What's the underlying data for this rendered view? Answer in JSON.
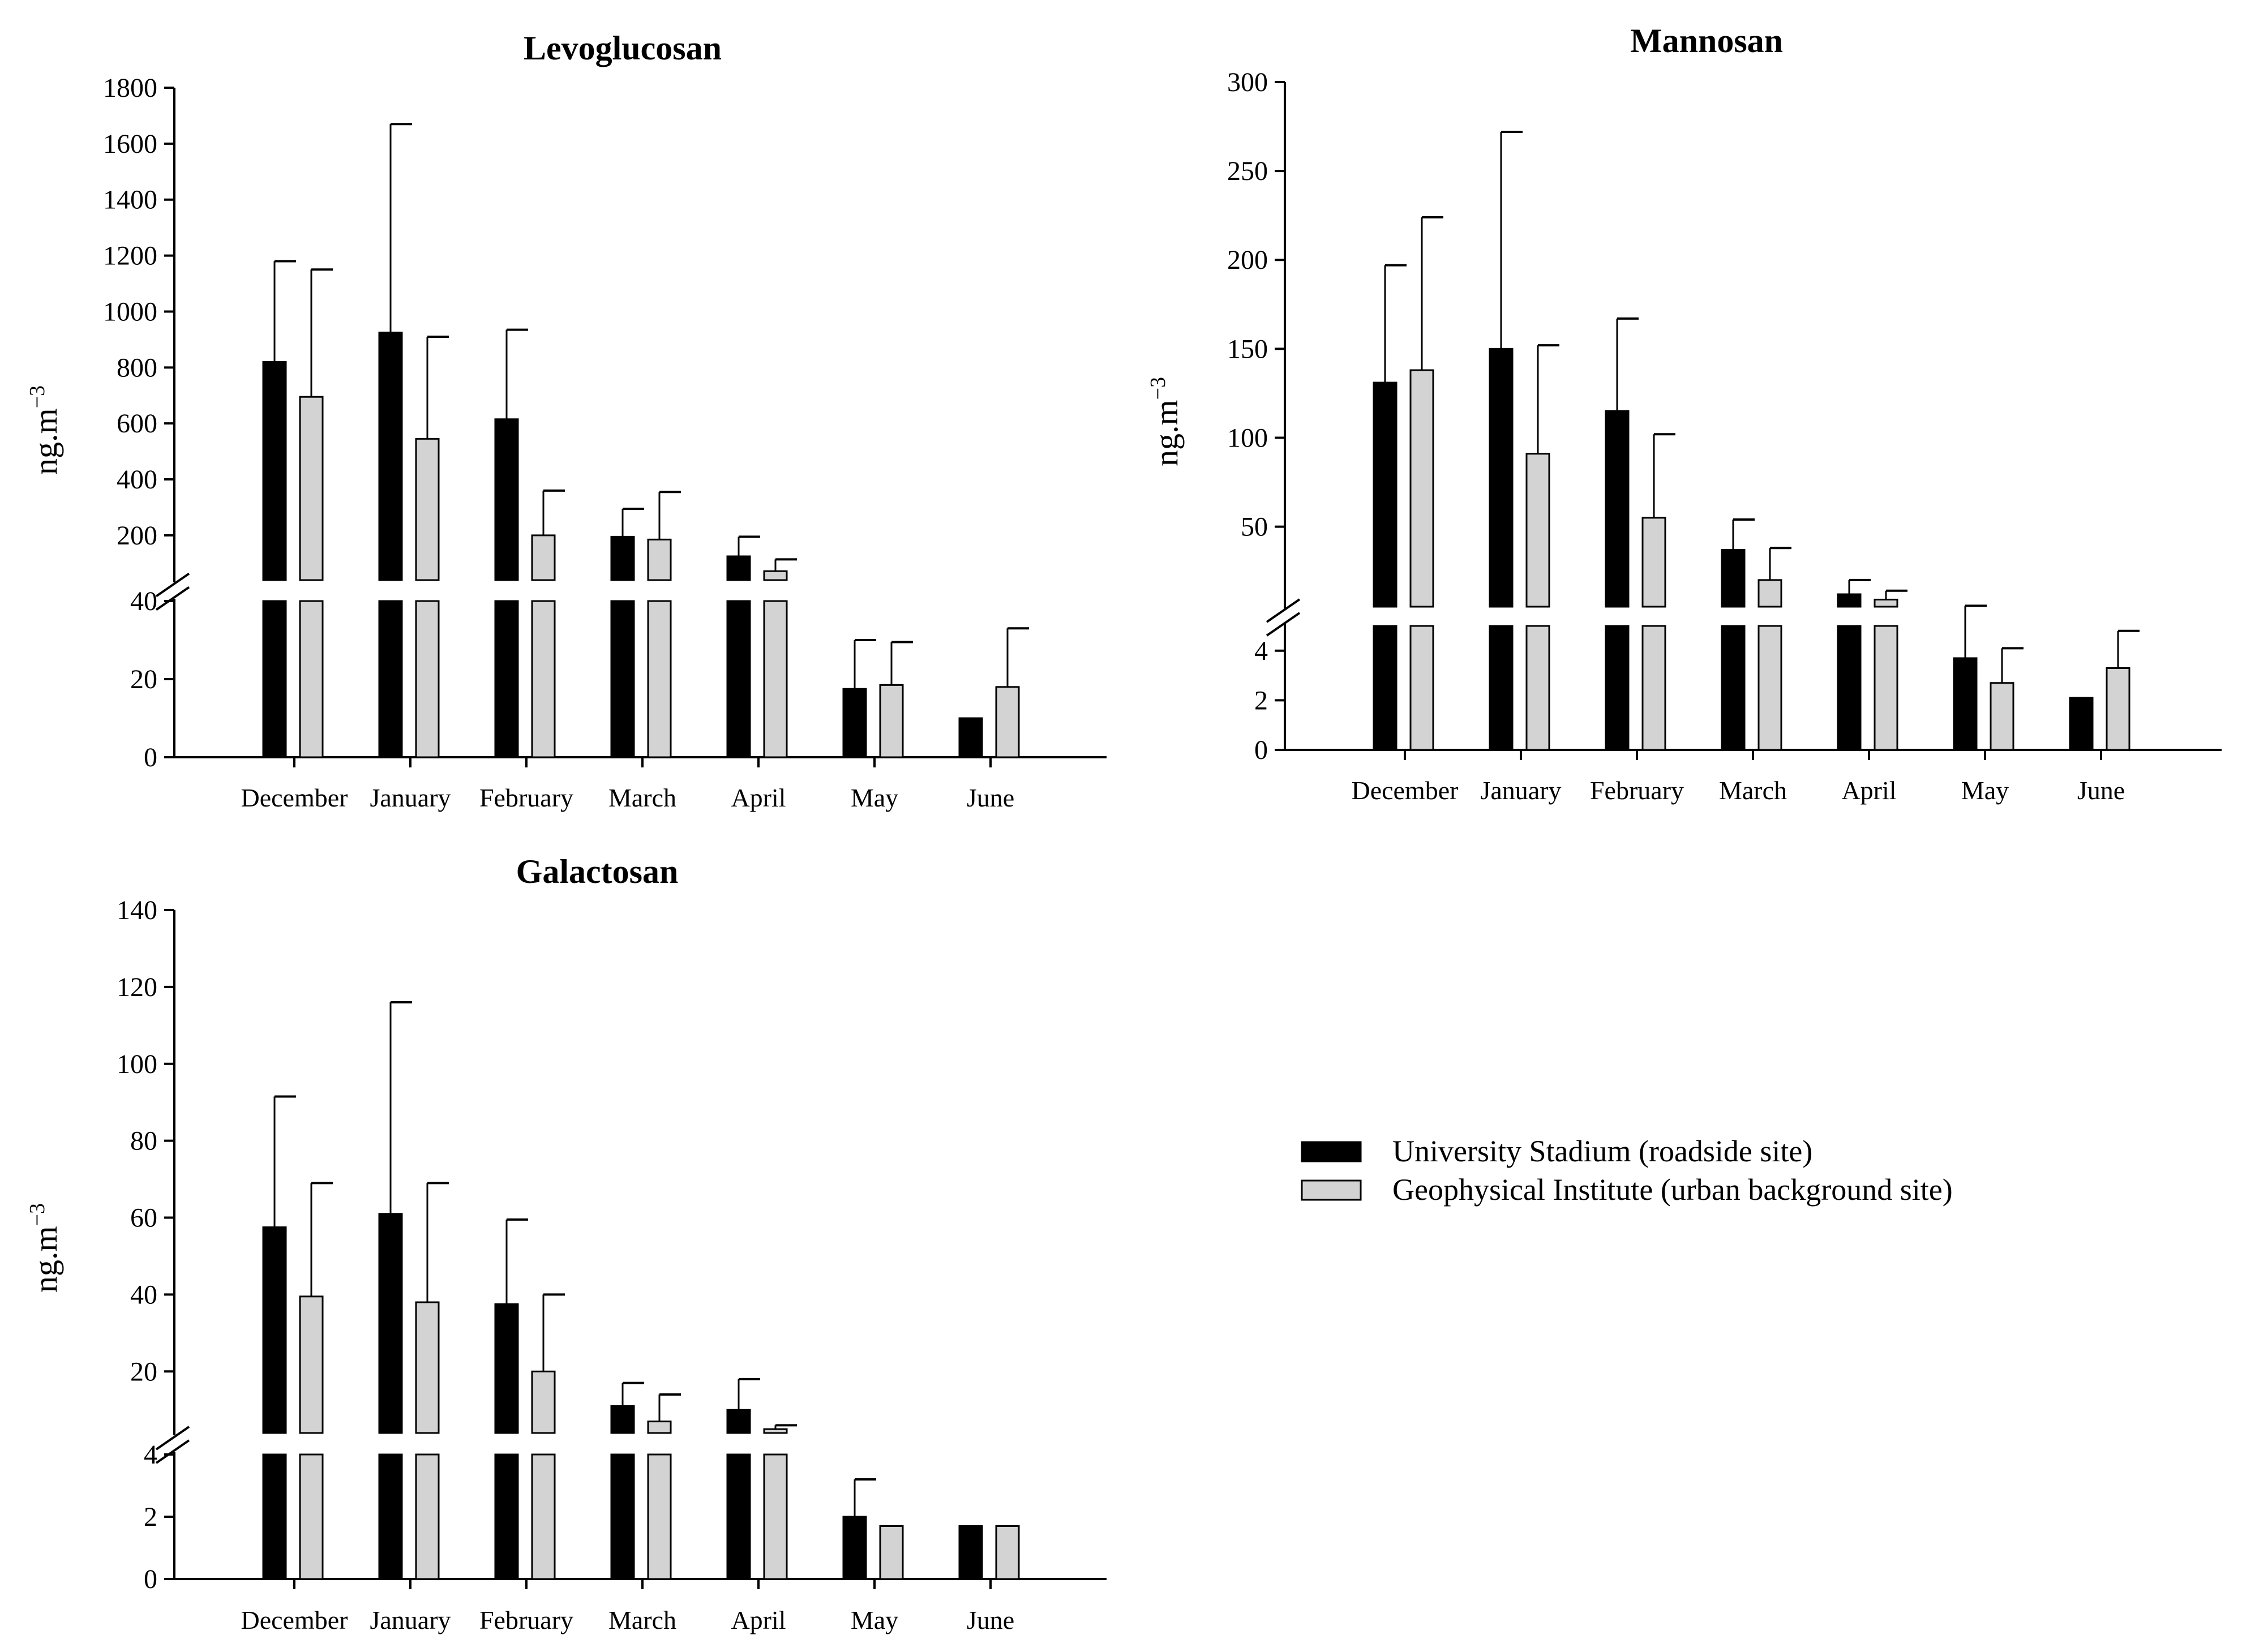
{
  "colors": {
    "roadside": "#000000",
    "background": "#d3d3d3",
    "axis": "#000000"
  },
  "legend": {
    "placement": "right",
    "items": [
      {
        "label": "University Stadium (roadside site)",
        "color": "#000000"
      },
      {
        "label": "Geophysical Institute (urban background site)",
        "color": "#d3d3d3"
      }
    ]
  },
  "chart_data": [
    {
      "type": "bar",
      "title": "Levoglucosan",
      "ylabel": "ng.m",
      "ylabel_exp": "−3",
      "categories": [
        "December",
        "January",
        "February",
        "March",
        "April",
        "May",
        "June"
      ],
      "broken_axis": {
        "lower": {
          "range": [
            0,
            40
          ],
          "ticks": [
            "0",
            "20",
            "40"
          ]
        },
        "upper": {
          "range": [
            40,
            1800
          ],
          "ticks": [
            "200",
            "400",
            "600",
            "800",
            "1000",
            "1200",
            "1400",
            "1600",
            "1800"
          ]
        }
      },
      "series": [
        {
          "name": "University Stadium (roadside site)",
          "values": [
            820,
            925,
            615,
            195,
            125,
            17.5,
            10
          ],
          "errors": [
            360,
            745,
            320,
            100,
            70,
            12.5,
            0
          ]
        },
        {
          "name": "Geophysical Institute (urban background site)",
          "values": [
            695,
            545,
            200,
            185,
            72,
            18.5,
            18
          ],
          "errors": [
            455,
            365,
            160,
            170,
            42,
            11,
            15
          ]
        }
      ]
    },
    {
      "type": "bar",
      "title": "Mannosan",
      "ylabel": "ng.m",
      "ylabel_exp": "−3",
      "categories": [
        "December",
        "January",
        "February",
        "March",
        "April",
        "May",
        "June"
      ],
      "broken_axis": {
        "lower": {
          "range": [
            0,
            5
          ],
          "ticks": [
            "0",
            "2",
            "4"
          ]
        },
        "upper": {
          "range": [
            5,
            300
          ],
          "ticks": [
            "50",
            "100",
            "150",
            "200",
            "250",
            "300"
          ]
        }
      },
      "series": [
        {
          "name": "University Stadium (roadside site)",
          "values": [
            131,
            150,
            115,
            37,
            12,
            3.7,
            2.1
          ],
          "errors": [
            66,
            122,
            52,
            17,
            8,
            1.8,
            0
          ]
        },
        {
          "name": "Geophysical Institute (urban background site)",
          "values": [
            138,
            91,
            55,
            20,
            9,
            2.7,
            3.3
          ],
          "errors": [
            86,
            61,
            47,
            18,
            5,
            1.4,
            1.5
          ]
        }
      ]
    },
    {
      "type": "bar",
      "title": "Galactosan",
      "ylabel": "ng.m",
      "ylabel_exp": "−3",
      "categories": [
        "December",
        "January",
        "February",
        "March",
        "April",
        "May",
        "June"
      ],
      "broken_axis": {
        "lower": {
          "range": [
            0,
            4
          ],
          "ticks": [
            "0",
            "2",
            "4"
          ]
        },
        "upper": {
          "range": [
            4,
            140
          ],
          "ticks": [
            "20",
            "40",
            "60",
            "80",
            "100",
            "120",
            "140"
          ]
        }
      },
      "series": [
        {
          "name": "University Stadium (roadside site)",
          "values": [
            57.5,
            61,
            37.5,
            11,
            10,
            2,
            1.7
          ],
          "errors": [
            34,
            55,
            22,
            6,
            8,
            1.2,
            0
          ]
        },
        {
          "name": "Geophysical Institute (urban background site)",
          "values": [
            39.5,
            38,
            20,
            7,
            5,
            1.7,
            1.7
          ],
          "errors": [
            29.5,
            31,
            20,
            7,
            1,
            0,
            0
          ]
        }
      ]
    }
  ]
}
